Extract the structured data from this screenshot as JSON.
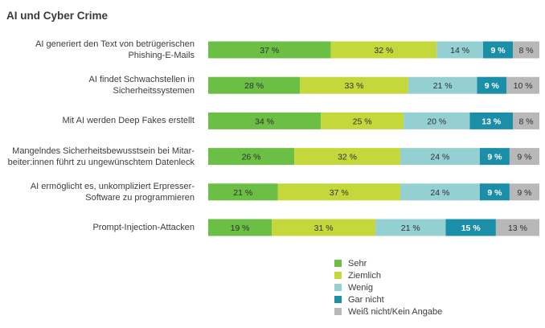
{
  "colors": {
    "sehr": "#6cbf45",
    "ziemlich": "#c4d73b",
    "wenig": "#94d0d2",
    "gar_nicht": "#1c8fa8",
    "weiss_nicht": "#b8b8b8"
  },
  "chart_data": {
    "type": "bar",
    "orientation": "horizontal",
    "stacked": true,
    "title": "AI und Cyber Crime",
    "xlabel": "",
    "ylabel": "",
    "xlim": [
      0,
      100
    ],
    "grid": false,
    "legend_position": "bottom-right",
    "categories": [
      {
        "line1": "AI generiert den Text von betrügerischen",
        "line2": "Phishing-E-Mails"
      },
      {
        "line1": "AI findet Schwachstellen in",
        "line2": "Sicherheitssystemen"
      },
      {
        "line1": "Mit AI werden Deep Fakes erstellt",
        "line2": ""
      },
      {
        "line1": "Mangelndes Sicherheitsbewusstsein bei Mitar-",
        "line2": "beiter:innen  führt zu ungewünschtem Datenleck"
      },
      {
        "line1": "AI ermöglicht es, unkompliziert Erpresser-",
        "line2": "Software zu programmieren"
      },
      {
        "line1": "Prompt-Injection-Attacken",
        "line2": ""
      }
    ],
    "series": [
      {
        "name": "Sehr",
        "color_key": "sehr",
        "label_color": "#2f2f2f",
        "values": [
          37,
          28,
          34,
          26,
          21,
          19
        ]
      },
      {
        "name": "Ziemlich",
        "color_key": "ziemlich",
        "label_color": "#2f2f2f",
        "values": [
          32,
          33,
          25,
          32,
          37,
          31
        ]
      },
      {
        "name": "Wenig",
        "color_key": "wenig",
        "label_color": "#2f2f2f",
        "values": [
          14,
          21,
          20,
          24,
          24,
          21
        ]
      },
      {
        "name": "Gar nicht",
        "color_key": "gar_nicht",
        "label_color": "#ffffff",
        "values": [
          9,
          9,
          13,
          9,
          9,
          15
        ]
      },
      {
        "name": "Weiß nicht/Kein Angabe",
        "color_key": "weiss_nicht",
        "label_color": "#2f2f2f",
        "values": [
          8,
          10,
          8,
          9,
          9,
          13
        ]
      }
    ],
    "value_suffix": " %"
  }
}
